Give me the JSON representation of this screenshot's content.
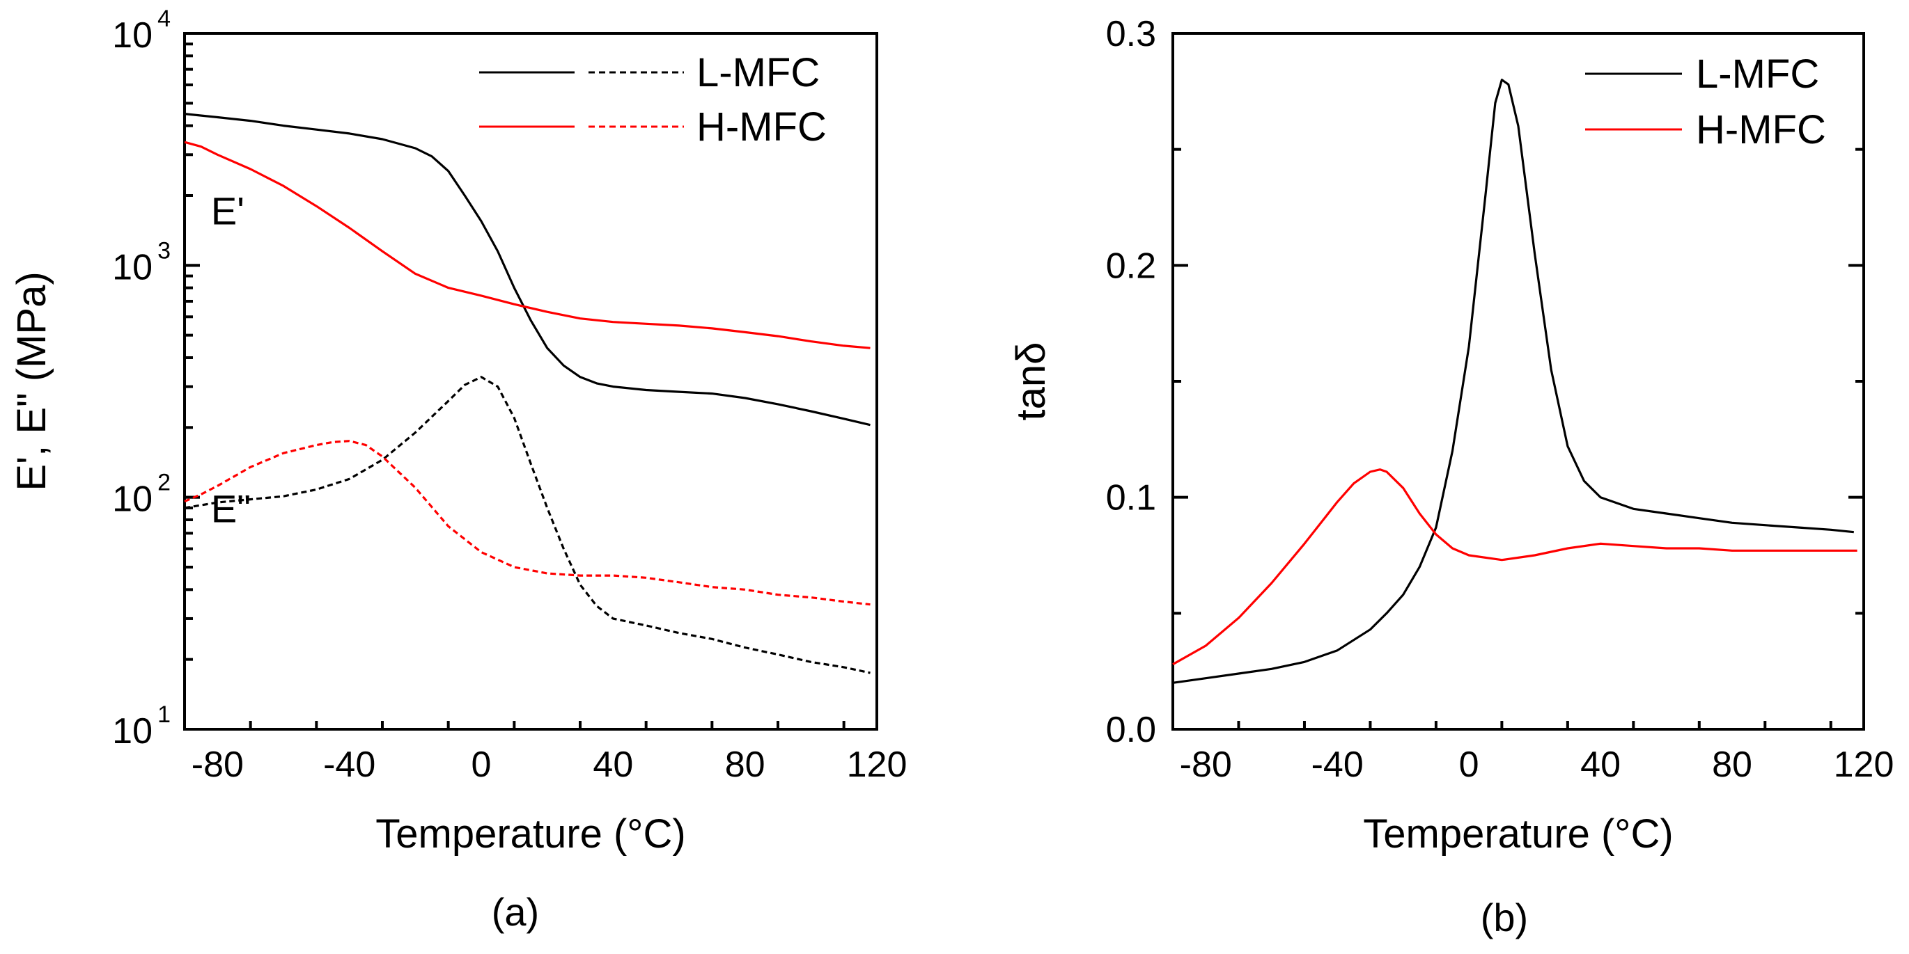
{
  "chart_data": [
    {
      "id": "a",
      "type": "line",
      "caption": "(a)",
      "xlabel": "Temperature (°C)",
      "ylabel": "E', E\" (MPa)",
      "yscale": "log",
      "xlim": [
        -90,
        120
      ],
      "ylim": [
        10,
        10000
      ],
      "xticks": [
        -80,
        -40,
        0,
        40,
        80,
        120
      ],
      "xtick_labels": [
        "-80",
        "-40",
        "0",
        "40",
        "80",
        "120"
      ],
      "yticks": [
        10,
        100,
        1000,
        10000
      ],
      "ytick_labels": [
        {
          "base": "10",
          "exp": "1"
        },
        {
          "base": "10",
          "exp": "2"
        },
        {
          "base": "10",
          "exp": "3"
        },
        {
          "base": "10",
          "exp": "4"
        }
      ],
      "annotations": [
        {
          "text": "E'",
          "x": -82,
          "y": 1500
        },
        {
          "text": "E\"",
          "x": -82,
          "y": 78
        }
      ],
      "legend": {
        "position": "top-right",
        "entries": [
          {
            "label": "L-MFC",
            "color": "#000000"
          },
          {
            "label": "H-MFC",
            "color": "#ff0000"
          }
        ]
      },
      "series": [
        {
          "name": "L-MFC E'",
          "color": "#000000",
          "dash": "solid",
          "x": [
            -90,
            -80,
            -70,
            -60,
            -50,
            -40,
            -30,
            -20,
            -15,
            -10,
            -5,
            0,
            5,
            10,
            15,
            20,
            25,
            30,
            35,
            40,
            50,
            60,
            70,
            80,
            90,
            100,
            110,
            118
          ],
          "y": [
            4500,
            4350,
            4200,
            4000,
            3850,
            3700,
            3500,
            3200,
            2950,
            2550,
            2000,
            1550,
            1150,
            800,
            580,
            440,
            370,
            330,
            310,
            300,
            290,
            285,
            280,
            268,
            252,
            235,
            218,
            205
          ]
        },
        {
          "name": "H-MFC E'",
          "color": "#ff0000",
          "dash": "solid",
          "x": [
            -90,
            -85,
            -80,
            -70,
            -60,
            -50,
            -40,
            -30,
            -20,
            -10,
            0,
            10,
            20,
            30,
            40,
            50,
            60,
            70,
            80,
            90,
            100,
            110,
            118
          ],
          "y": [
            3400,
            3250,
            3000,
            2600,
            2200,
            1800,
            1450,
            1150,
            920,
            800,
            740,
            680,
            630,
            590,
            570,
            560,
            550,
            535,
            515,
            495,
            470,
            450,
            440
          ]
        },
        {
          "name": "L-MFC E\"",
          "color": "#000000",
          "dash": "dashed",
          "x": [
            -90,
            -80,
            -70,
            -60,
            -50,
            -40,
            -30,
            -20,
            -10,
            -5,
            0,
            5,
            10,
            15,
            20,
            25,
            30,
            35,
            40,
            50,
            60,
            70,
            80,
            90,
            100,
            110,
            118
          ],
          "y": [
            90,
            95,
            98,
            101,
            108,
            120,
            145,
            190,
            260,
            305,
            330,
            300,
            220,
            140,
            90,
            60,
            42,
            34,
            30,
            28,
            26,
            24.5,
            22.5,
            21,
            19.5,
            18.5,
            17.5
          ]
        },
        {
          "name": "H-MFC E\"",
          "color": "#ff0000",
          "dash": "dashed",
          "x": [
            -90,
            -85,
            -80,
            -70,
            -60,
            -50,
            -45,
            -40,
            -35,
            -30,
            -20,
            -10,
            0,
            10,
            20,
            30,
            40,
            50,
            60,
            70,
            80,
            90,
            100,
            110,
            118
          ],
          "y": [
            96,
            103,
            112,
            135,
            155,
            168,
            173,
            175,
            168,
            150,
            110,
            75,
            58,
            50,
            47,
            46,
            46,
            45,
            43,
            41,
            40,
            38,
            37,
            35.5,
            34.5
          ]
        }
      ]
    },
    {
      "id": "b",
      "type": "line",
      "caption": "(b)",
      "xlabel": "Temperature (°C)",
      "ylabel": "tanδ",
      "yscale": "linear",
      "xlim": [
        -90,
        120
      ],
      "ylim": [
        0,
        0.3
      ],
      "xticks": [
        -80,
        -40,
        0,
        40,
        80,
        120
      ],
      "xtick_labels": [
        "-80",
        "-40",
        "0",
        "40",
        "80",
        "120"
      ],
      "yticks": [
        0,
        0.1,
        0.2,
        0.3
      ],
      "ytick_labels": [
        "0.0",
        "0.1",
        "0.2",
        "0.3"
      ],
      "legend": {
        "position": "top-right",
        "entries": [
          {
            "label": "L-MFC",
            "color": "#000000"
          },
          {
            "label": "H-MFC",
            "color": "#ff0000"
          }
        ]
      },
      "series": [
        {
          "name": "L-MFC",
          "color": "#000000",
          "x": [
            -90,
            -80,
            -70,
            -60,
            -50,
            -40,
            -30,
            -25,
            -20,
            -15,
            -10,
            -5,
            0,
            5,
            8,
            10,
            12,
            15,
            20,
            25,
            30,
            35,
            40,
            50,
            60,
            70,
            80,
            90,
            100,
            110,
            117
          ],
          "y": [
            0.02,
            0.022,
            0.024,
            0.026,
            0.029,
            0.034,
            0.043,
            0.05,
            0.058,
            0.07,
            0.087,
            0.12,
            0.165,
            0.23,
            0.27,
            0.28,
            0.278,
            0.26,
            0.205,
            0.155,
            0.122,
            0.107,
            0.1,
            0.095,
            0.093,
            0.091,
            0.089,
            0.088,
            0.087,
            0.086,
            0.085
          ]
        },
        {
          "name": "H-MFC",
          "color": "#ff0000",
          "x": [
            -90,
            -80,
            -70,
            -60,
            -50,
            -40,
            -35,
            -30,
            -27,
            -25,
            -20,
            -15,
            -10,
            -5,
            0,
            10,
            20,
            30,
            40,
            50,
            60,
            70,
            80,
            90,
            100,
            110,
            118
          ],
          "y": [
            0.028,
            0.036,
            0.048,
            0.063,
            0.08,
            0.098,
            0.106,
            0.111,
            0.112,
            0.111,
            0.104,
            0.093,
            0.084,
            0.078,
            0.075,
            0.073,
            0.075,
            0.078,
            0.08,
            0.079,
            0.078,
            0.078,
            0.077,
            0.077,
            0.077,
            0.077,
            0.077
          ]
        }
      ]
    }
  ]
}
